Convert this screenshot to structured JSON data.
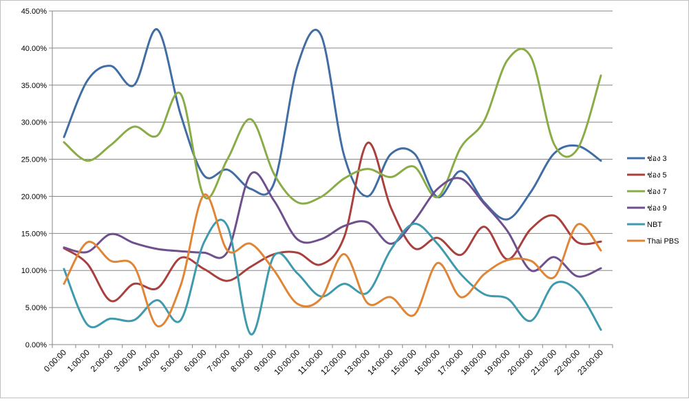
{
  "chart_data": {
    "type": "line",
    "title": "",
    "xlabel": "",
    "ylabel": "",
    "ylim": [
      0,
      45
    ],
    "yticks": [
      "0.00%",
      "5.00%",
      "10.00%",
      "15.00%",
      "20.00%",
      "25.00%",
      "30.00%",
      "35.00%",
      "40.00%",
      "45.00%"
    ],
    "categories": [
      "0:00:00",
      "1:00:00",
      "2:00:00",
      "3:00:00",
      "4:00:00",
      "5:00:00",
      "6:00:00",
      "7:00:00",
      "8:00:00",
      "9:00:00",
      "10:00:00",
      "11:00:00",
      "12:00:00",
      "13:00:00",
      "14:00:00",
      "15:00:00",
      "16:00:00",
      "17:00:00",
      "18:00:00",
      "19:00:00",
      "20:00:00",
      "21:00:00",
      "22:00:00",
      "23:00:00"
    ],
    "grid": true,
    "legend_position": "right",
    "series": [
      {
        "name": "ช่อง 3",
        "color": "#3f6da4",
        "values": [
          28.0,
          35.6,
          37.6,
          35.0,
          42.5,
          31.0,
          22.8,
          23.6,
          21.0,
          21.8,
          37.6,
          41.8,
          25.5,
          20.0,
          25.7,
          25.8,
          19.9,
          23.4,
          19.2,
          16.9,
          20.6,
          25.8,
          26.8,
          24.8
        ]
      },
      {
        "name": "ช่อง 5",
        "color": "#a9403d",
        "values": [
          13.0,
          10.9,
          5.9,
          8.2,
          7.6,
          11.7,
          10.2,
          8.6,
          10.5,
          12.2,
          12.4,
          10.8,
          14.5,
          27.2,
          18.5,
          13.0,
          14.4,
          12.1,
          15.9,
          11.5,
          15.6,
          17.4,
          13.8,
          13.9
        ]
      },
      {
        "name": "ช่อง 7",
        "color": "#8aac47",
        "values": [
          27.3,
          24.8,
          26.9,
          29.4,
          28.2,
          33.8,
          20.0,
          25.0,
          30.4,
          23.0,
          19.2,
          19.9,
          22.4,
          23.7,
          22.6,
          24.0,
          19.9,
          26.6,
          30.2,
          38.4,
          38.8,
          27.0,
          26.4,
          36.3
        ]
      },
      {
        "name": "ช่อง 9",
        "color": "#6f4f8e",
        "values": [
          13.1,
          12.5,
          14.9,
          13.7,
          12.9,
          12.6,
          12.4,
          12.5,
          23.0,
          19.4,
          14.2,
          14.2,
          16.0,
          16.5,
          13.6,
          16.7,
          21.0,
          22.4,
          19.0,
          15.3,
          10.0,
          11.8,
          9.2,
          10.3
        ]
      },
      {
        "name": "NBT",
        "color": "#3f9aae",
        "values": [
          10.2,
          2.7,
          3.5,
          3.3,
          6.0,
          3.3,
          13.8,
          16.0,
          1.4,
          12.0,
          9.6,
          6.5,
          8.2,
          7.0,
          12.8,
          16.3,
          13.6,
          9.5,
          6.8,
          6.2,
          3.2,
          8.2,
          7.2,
          2.0
        ]
      },
      {
        "name": "Thai PBS",
        "color": "#e08535",
        "values": [
          8.2,
          13.8,
          11.3,
          10.6,
          2.5,
          8.0,
          20.2,
          12.7,
          13.6,
          10.0,
          5.5,
          6.2,
          12.2,
          5.6,
          6.4,
          4.0,
          11.0,
          6.4,
          9.5,
          11.4,
          11.3,
          9.1,
          16.2,
          12.7
        ]
      }
    ]
  }
}
